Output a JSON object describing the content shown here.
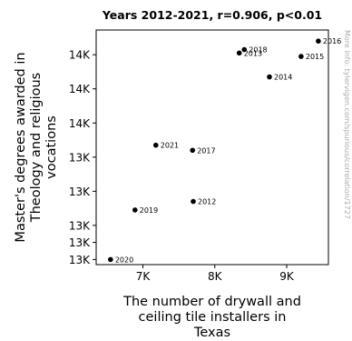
{
  "chart_data": {
    "type": "scatter",
    "title": "Years 2012-2021, r=0.906, p<0.01",
    "xlabel": [
      "The number of drywall and",
      "ceiling tile installers in",
      "Texas"
    ],
    "ylabel": [
      "Master's degrees awarded in",
      "Theology and religious",
      "vocations"
    ],
    "side_note": "More info: tylervigen.com/spurious/correlation/1727",
    "xlim": [
      6350,
      9580
    ],
    "ylim": [
      12950,
      14325
    ],
    "x_ticks": [
      {
        "value": 7000,
        "label": "7K"
      },
      {
        "value": 8000,
        "label": "8K"
      },
      {
        "value": 9000,
        "label": "9K"
      }
    ],
    "y_ticks": [
      {
        "value": 12980,
        "label": "13K"
      },
      {
        "value": 13080,
        "label": "13K"
      },
      {
        "value": 13180,
        "label": "13K"
      },
      {
        "value": 13380,
        "label": "13K"
      },
      {
        "value": 13580,
        "label": "13K"
      },
      {
        "value": 13780,
        "label": "14K"
      },
      {
        "value": 13980,
        "label": "14K"
      },
      {
        "value": 14180,
        "label": "14K"
      }
    ],
    "points": [
      {
        "label": "2012",
        "x": 7700,
        "y": 13320
      },
      {
        "label": "2013",
        "x": 8340,
        "y": 14190
      },
      {
        "label": "2014",
        "x": 8760,
        "y": 14050
      },
      {
        "label": "2015",
        "x": 9200,
        "y": 14170
      },
      {
        "label": "2016",
        "x": 9440,
        "y": 14260
      },
      {
        "label": "2017",
        "x": 7690,
        "y": 13620
      },
      {
        "label": "2018",
        "x": 8410,
        "y": 14210
      },
      {
        "label": "2019",
        "x": 6890,
        "y": 13270
      },
      {
        "label": "2020",
        "x": 6550,
        "y": 12980
      },
      {
        "label": "2021",
        "x": 7180,
        "y": 13650
      }
    ]
  }
}
